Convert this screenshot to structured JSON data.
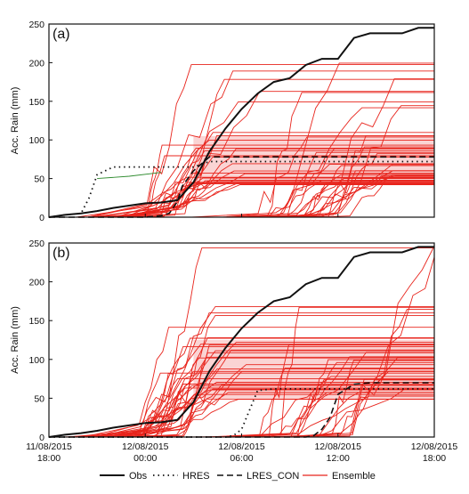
{
  "chart_data": [
    {
      "type": "line",
      "panel_label": "(a)",
      "ylabel": "Acc. Rain (mm)",
      "ylim": [
        0,
        250
      ],
      "yticks": [
        "0",
        "50",
        "100",
        "150",
        "200",
        "250"
      ],
      "x_ticks": [
        "11/08/2015 18:00",
        "12/08/2015 00:00",
        "12/08/2015 06:00",
        "12/08/2015 12:00",
        "12/08/2015 18:00"
      ],
      "xlim_hours": [
        0,
        24
      ],
      "series": [
        {
          "name": "Obs",
          "x": [
            0,
            1,
            2,
            3,
            4,
            5,
            6,
            7,
            8,
            9,
            10,
            11,
            12,
            13,
            14,
            15,
            16,
            17,
            18,
            19,
            20,
            21,
            22,
            23,
            24
          ],
          "y": [
            0,
            3,
            5,
            8,
            12,
            15,
            18,
            19,
            22,
            45,
            85,
            115,
            140,
            160,
            175,
            180,
            197,
            205,
            205,
            232,
            238,
            238,
            238,
            245,
            245
          ]
        },
        {
          "name": "HRES",
          "x": [
            0,
            1,
            2,
            2.5,
            3,
            4,
            5,
            6,
            7,
            8,
            9,
            10,
            11,
            12,
            13,
            14,
            15,
            16,
            17,
            18,
            19,
            20,
            21,
            22,
            23,
            24
          ],
          "y": [
            0,
            3,
            5,
            25,
            55,
            65,
            65,
            65,
            65,
            65,
            65,
            72,
            72,
            72,
            72,
            72,
            72,
            72,
            72,
            72,
            72,
            72,
            72,
            72,
            72,
            72
          ]
        },
        {
          "name": "LRES_CON",
          "x": [
            0,
            3,
            6,
            7,
            7.5,
            8,
            8.3,
            9,
            10,
            12,
            14,
            16,
            18,
            20,
            22,
            24
          ],
          "y": [
            0,
            0,
            0,
            2,
            5,
            20,
            40,
            60,
            78,
            78,
            78,
            78,
            78,
            78,
            78,
            78
          ]
        }
      ]
    },
    {
      "type": "line",
      "panel_label": "(b)",
      "ylabel": "Acc. Rain (mm)",
      "ylim": [
        0,
        250
      ],
      "yticks": [
        "0",
        "50",
        "100",
        "150",
        "200",
        "250"
      ],
      "x_ticks": [
        "11/08/2015 18:00",
        "12/08/2015 00:00",
        "12/08/2015 06:00",
        "12/08/2015 12:00",
        "12/08/2015 18:00"
      ],
      "xlim_hours": [
        0,
        24
      ],
      "series": [
        {
          "name": "Obs",
          "x": [
            0,
            1,
            2,
            3,
            4,
            5,
            6,
            7,
            8,
            9,
            10,
            11,
            12,
            13,
            14,
            15,
            16,
            17,
            18,
            19,
            20,
            21,
            22,
            23,
            24
          ],
          "y": [
            0,
            3,
            5,
            8,
            12,
            15,
            18,
            19,
            22,
            45,
            85,
            115,
            140,
            160,
            175,
            180,
            197,
            205,
            205,
            232,
            238,
            238,
            238,
            245,
            245
          ]
        },
        {
          "name": "HRES",
          "x": [
            0,
            2,
            4,
            6,
            8,
            10,
            11,
            11.5,
            12,
            12.5,
            13,
            14,
            16,
            17.5,
            18,
            19,
            20,
            22,
            24
          ],
          "y": [
            0,
            0,
            0,
            0,
            0,
            0,
            0,
            2,
            10,
            35,
            60,
            62,
            62,
            62,
            62,
            62,
            62,
            62,
            62
          ]
        },
        {
          "name": "LRES_CON",
          "x": [
            0,
            4,
            8,
            12,
            15,
            16,
            16.5,
            17,
            17.5,
            18,
            19,
            20,
            22,
            24
          ],
          "y": [
            0,
            0,
            0,
            0,
            0,
            0,
            2,
            10,
            25,
            55,
            68,
            70,
            70,
            70
          ]
        }
      ]
    }
  ],
  "ensemble_color": "#e8241c",
  "ensemble_fill": "#f6b0b0",
  "legend": {
    "items": [
      {
        "label": "Obs",
        "style": "solid-black"
      },
      {
        "label": "HRES",
        "style": "dotted-black"
      },
      {
        "label": "LRES_CON",
        "style": "dashed-black"
      },
      {
        "label": "Ensemble",
        "style": "solid-red"
      }
    ],
    "placement": "bottom"
  }
}
